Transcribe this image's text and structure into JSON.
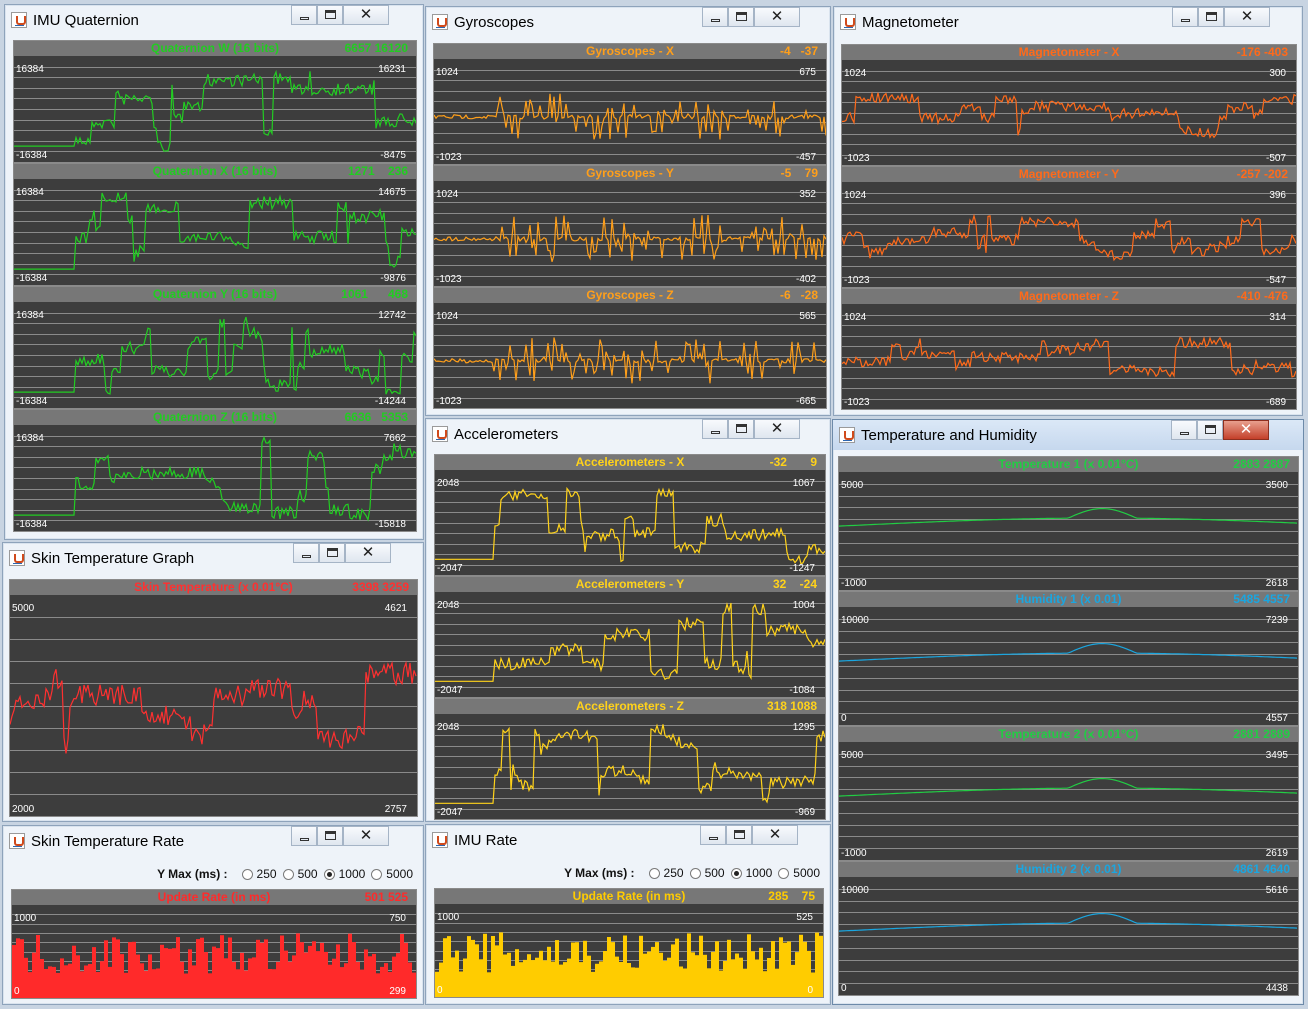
{
  "windows": {
    "quat": {
      "title": "IMU Quaternion",
      "charts": [
        {
          "name": "Quaternion W (16 bits)",
          "values": "6657 16120",
          "top_left": "16384",
          "bottom_left": "-16384",
          "top_right": "16231",
          "bottom_right": "-8475",
          "color": "#22cc22"
        },
        {
          "name": "Quaternion X (16 bits)",
          "values": "1271    236",
          "top_left": "16384",
          "bottom_left": "-16384",
          "top_right": "14675",
          "bottom_right": "-9876",
          "color": "#22cc22"
        },
        {
          "name": "Quaternion Y (16 bits)",
          "values": "1061      468",
          "top_left": "16384",
          "bottom_left": "-16384",
          "top_right": "12742",
          "bottom_right": "-14244",
          "color": "#22cc22"
        },
        {
          "name": "Quaternion Z (16 bits)",
          "values": "6636   5353",
          "top_left": "16384",
          "bottom_left": "-16384",
          "top_right": "7662",
          "bottom_right": "-15818",
          "color": "#22cc22"
        }
      ]
    },
    "gyro": {
      "title": "Gyroscopes",
      "charts": [
        {
          "name": "Gyroscopes - X",
          "values": "-4   -37",
          "top_left": "1024",
          "bottom_left": "-1023",
          "top_right": "675",
          "bottom_right": "-457",
          "color": "#ff9f1a"
        },
        {
          "name": "Gyroscopes - Y",
          "values": "-5    79",
          "top_left": "1024",
          "bottom_left": "-1023",
          "top_right": "352",
          "bottom_right": "-402",
          "color": "#ff9f1a"
        },
        {
          "name": "Gyroscopes - Z",
          "values": "-6   -28",
          "top_left": "1024",
          "bottom_left": "-1023",
          "top_right": "565",
          "bottom_right": "-665",
          "color": "#ff9f1a"
        }
      ]
    },
    "mag": {
      "title": "Magnetometer",
      "charts": [
        {
          "name": "Magnetometer - X",
          "values": "-176 -403",
          "top_left": "1024",
          "bottom_left": "-1023",
          "top_right": "300",
          "bottom_right": "-507",
          "color": "#ff6a1a"
        },
        {
          "name": "Magnetometer - Y",
          "values": "-257 -202",
          "top_left": "1024",
          "bottom_left": "-1023",
          "top_right": "396",
          "bottom_right": "-547",
          "color": "#ff6a1a"
        },
        {
          "name": "Magnetometer - Z",
          "values": "-410 -476",
          "top_left": "1024",
          "bottom_left": "-1023",
          "top_right": "314",
          "bottom_right": "-689",
          "color": "#ff6a1a"
        }
      ]
    },
    "skin": {
      "title": "Skin Temperature Graph",
      "charts": [
        {
          "name": "Skin Temperature (x 0.01°C)",
          "values": "3398 3259",
          "top_left": "5000",
          "bottom_left": "2000",
          "top_right": "4621",
          "bottom_right": "2757",
          "color": "#ff3030"
        }
      ]
    },
    "accel": {
      "title": "Accelerometers",
      "charts": [
        {
          "name": "Accelerometers - X",
          "values": "-32       9",
          "top_left": "2048",
          "bottom_left": "-2047",
          "top_right": "1067",
          "bottom_right": "-1247",
          "color": "#ffd21a"
        },
        {
          "name": "Accelerometers - Y",
          "values": "32    -24",
          "top_left": "2048",
          "bottom_left": "-2047",
          "top_right": "1004",
          "bottom_right": "-1084",
          "color": "#ffd21a"
        },
        {
          "name": "Accelerometers - Z",
          "values": "318 1088",
          "top_left": "2048",
          "bottom_left": "-2047",
          "top_right": "1295",
          "bottom_right": "-969",
          "color": "#ffd21a"
        }
      ]
    },
    "temphum": {
      "title": "Temperature and Humidity",
      "charts": [
        {
          "name": "Temperature 1 (x 0.01°C)",
          "values": "2883 2887",
          "top_left": "5000",
          "bottom_left": "-1000",
          "top_right": "3500",
          "bottom_right": "2618",
          "color": "#22cc44"
        },
        {
          "name": "Humidity 1 (x 0.01)",
          "values": "5485 4557",
          "top_left": "10000",
          "bottom_left": "0",
          "top_right": "7239",
          "bottom_right": "4557",
          "color": "#1aa6e0"
        },
        {
          "name": "Temperature 2 (x 0.01°C)",
          "values": "2881 2889",
          "top_left": "5000",
          "bottom_left": "-1000",
          "top_right": "3495",
          "bottom_right": "2619",
          "color": "#22cc44"
        },
        {
          "name": "Humidity 2 (x 0.01)",
          "values": "4861 4640",
          "top_left": "10000",
          "bottom_left": "0",
          "top_right": "5616",
          "bottom_right": "4438",
          "color": "#1aa6e0"
        }
      ]
    },
    "skinrate": {
      "title": "Skin Temperature Rate",
      "ymax_label": "Y Max (ms) :",
      "options": [
        "250",
        "500",
        "1000",
        "5000"
      ],
      "selected": "1000",
      "chart": {
        "name": "Update Rate (in ms)",
        "values": "501 525",
        "top_left": "1000",
        "bottom_left": "0",
        "top_right": "750",
        "bottom_right": "299",
        "color": "#ff2a2a"
      }
    },
    "imurate": {
      "title": "IMU Rate",
      "ymax_label": "Y Max (ms) :",
      "options": [
        "250",
        "500",
        "1000",
        "5000"
      ],
      "selected": "1000",
      "chart": {
        "name": "Update Rate (in ms)",
        "values": "285    75",
        "top_left": "1000",
        "bottom_left": "0",
        "top_right": "525",
        "bottom_right": "0",
        "color": "#ffcc00"
      }
    }
  }
}
